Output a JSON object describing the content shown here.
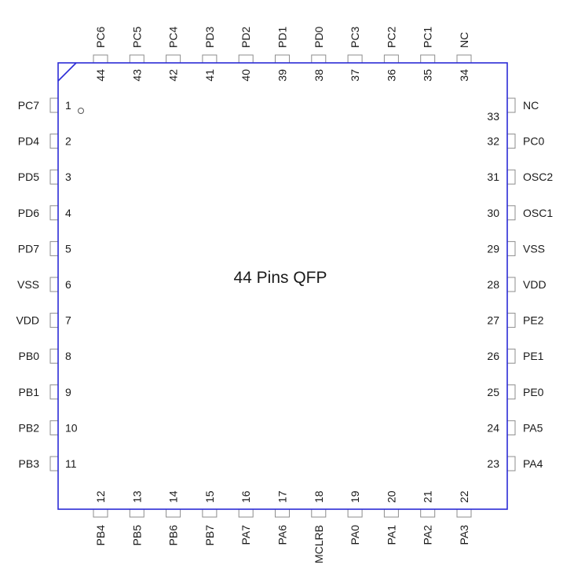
{
  "title": "44 Pins  QFP",
  "pins": {
    "left": [
      {
        "num": "1",
        "name": "PC7"
      },
      {
        "num": "2",
        "name": "PD4"
      },
      {
        "num": "3",
        "name": "PD5"
      },
      {
        "num": "4",
        "name": "PD6"
      },
      {
        "num": "5",
        "name": "PD7"
      },
      {
        "num": "6",
        "name": "VSS"
      },
      {
        "num": "7",
        "name": "VDD"
      },
      {
        "num": "8",
        "name": "PB0"
      },
      {
        "num": "9",
        "name": "PB1"
      },
      {
        "num": "10",
        "name": "PB2"
      },
      {
        "num": "11",
        "name": "PB3"
      }
    ],
    "bottom": [
      {
        "num": "12",
        "name": "PB4"
      },
      {
        "num": "13",
        "name": "PB5"
      },
      {
        "num": "14",
        "name": "PB6"
      },
      {
        "num": "15",
        "name": "PB7"
      },
      {
        "num": "16",
        "name": "PA7"
      },
      {
        "num": "17",
        "name": "PA6"
      },
      {
        "num": "18",
        "name": "MCLRB"
      },
      {
        "num": "19",
        "name": "PA0"
      },
      {
        "num": "20",
        "name": "PA1"
      },
      {
        "num": "21",
        "name": "PA2"
      },
      {
        "num": "22",
        "name": "PA3"
      }
    ],
    "right": [
      {
        "num": "23",
        "name": "PA4"
      },
      {
        "num": "24",
        "name": "PA5"
      },
      {
        "num": "25",
        "name": "PE0"
      },
      {
        "num": "26",
        "name": "PE1"
      },
      {
        "num": "27",
        "name": "PE2"
      },
      {
        "num": "28",
        "name": "VDD"
      },
      {
        "num": "29",
        "name": "VSS"
      },
      {
        "num": "30",
        "name": "OSC1"
      },
      {
        "num": "31",
        "name": "OSC2"
      },
      {
        "num": "32",
        "name": "PC0"
      },
      {
        "num": "33",
        "name": "NC"
      }
    ],
    "top": [
      {
        "num": "34",
        "name": "NC"
      },
      {
        "num": "35",
        "name": "PC1"
      },
      {
        "num": "36",
        "name": "PC2"
      },
      {
        "num": "37",
        "name": "PC3"
      },
      {
        "num": "38",
        "name": "PD0"
      },
      {
        "num": "39",
        "name": "PD1"
      },
      {
        "num": "40",
        "name": "PD2"
      },
      {
        "num": "41",
        "name": "PD3"
      },
      {
        "num": "42",
        "name": "PC4"
      },
      {
        "num": "43",
        "name": "PC5"
      },
      {
        "num": "44",
        "name": "PC6"
      }
    ]
  },
  "colors": {
    "body_outline": "#2b2bd6",
    "pin_outline": "#8c8c8c",
    "text": "#1a1a1a"
  }
}
